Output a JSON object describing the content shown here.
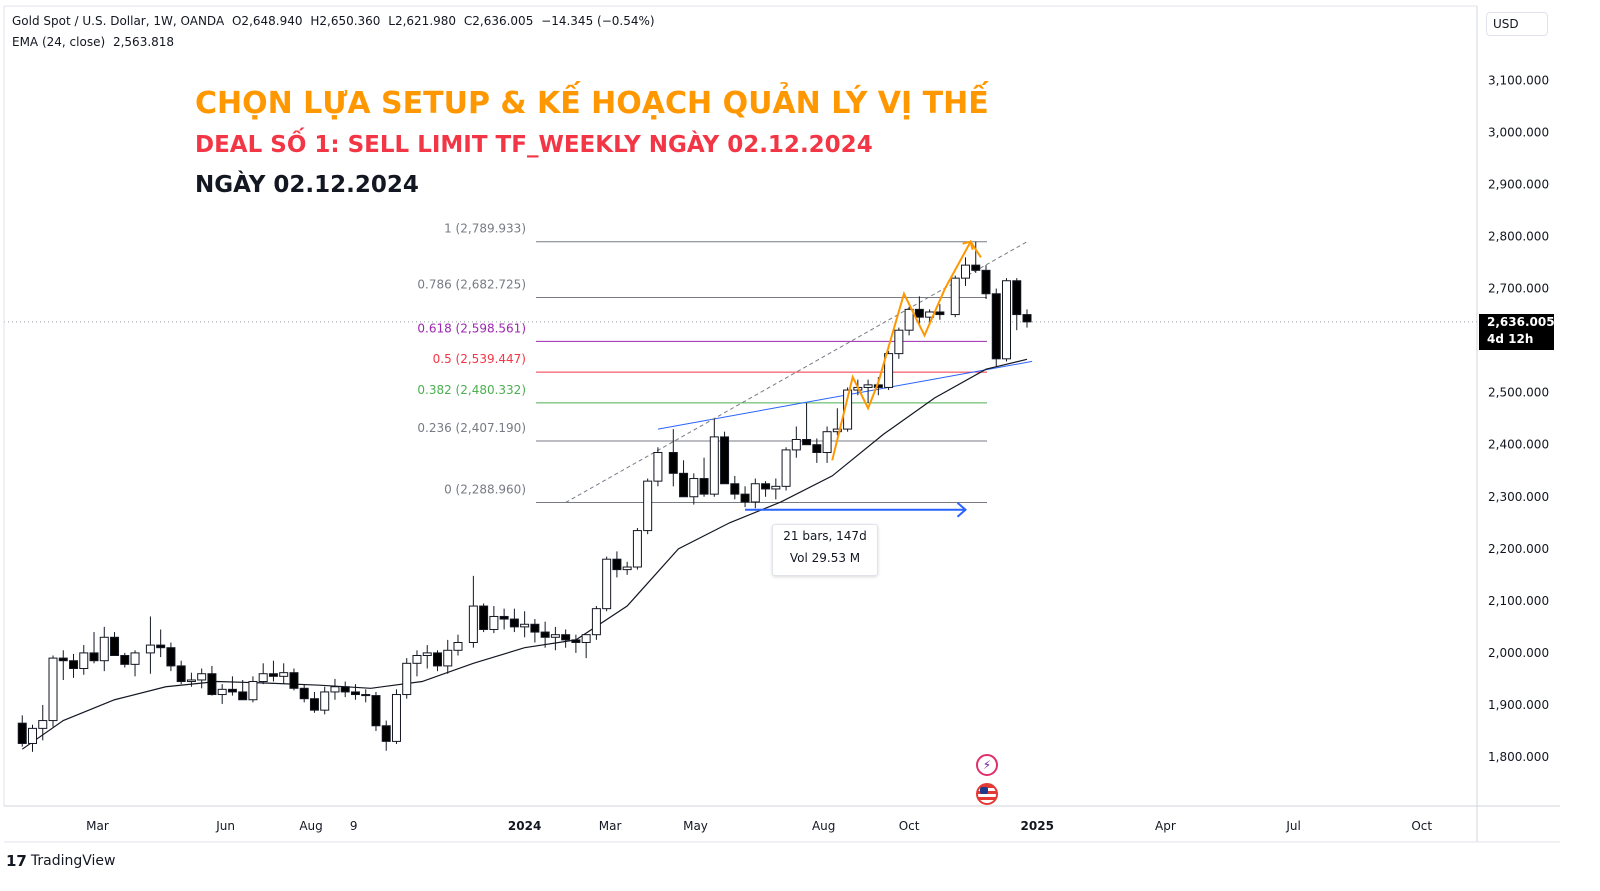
{
  "legend": {
    "symbol": "Gold Spot / U.S. Dollar, 1W, OANDA",
    "open": "O2,648.940",
    "high": "H2,650.360",
    "low": "L2,621.980",
    "close": "C2,636.005",
    "change": "−14.345 (−0.54%)",
    "ema_label": "EMA (24, close)",
    "ema_value": "2,563.818"
  },
  "titles": {
    "main": "CHỌN LỰA SETUP & KẾ HOẠCH QUẢN LÝ VỊ THẾ",
    "sub": "DEAL SỐ 1: SELL LIMIT TF_WEEKLY NGÀY 02.12.2024",
    "date": "NGÀY 02.12.2024"
  },
  "currency": "USD",
  "brand": "TradingView",
  "price_tag": {
    "price": "2,636.005",
    "countdown": "4d 12h"
  },
  "range_info": {
    "bars": "21 bars, 147d",
    "vol": "Vol 29.53 M"
  },
  "colors": {
    "title_main": "#ff9800",
    "title_sub": "#f23645",
    "ema_line": "#131722",
    "trend_line": "#2962ff",
    "zigzag": "#ff9800",
    "fib_0618": "#9c27b0",
    "fib_05": "#f23645",
    "fib_0382": "#4caf50",
    "fib_other": "#787b86",
    "range_arrow": "#2962ff"
  },
  "icons": [
    "lightning-icon",
    "us-flag-icon"
  ],
  "chart_data": {
    "type": "candlestick",
    "timeframe": "1W",
    "y_axis": {
      "ticks": [
        1800,
        1900,
        2000,
        2100,
        2200,
        2300,
        2400,
        2500,
        2600,
        2700,
        2800,
        2900,
        3000,
        3100
      ],
      "tick_labels": [
        "1,800.000",
        "1,900.000",
        "2,000.000",
        "2,100.000",
        "2,200.000",
        "2,300.000",
        "2,400.000",
        "2,500.000",
        "2,600.000",
        "2,700.000",
        "2,800.000",
        "2,900.000",
        "3,000.000",
        "3,100.000"
      ]
    },
    "x_axis": {
      "labels": [
        "Mar",
        "Jun",
        "Aug",
        "9",
        "2024",
        "Mar",
        "May",
        "Aug",
        "Oct",
        "2025",
        "Apr",
        "Jul",
        "Oct"
      ],
      "label_dates": [
        "2023-03-01",
        "2023-06-01",
        "2023-08-01",
        "2023-09-01",
        "2024-01-01",
        "2024-03-01",
        "2024-05-01",
        "2024-08-01",
        "2024-10-01",
        "2025-01-01",
        "2025-04-01",
        "2025-07-01",
        "2025-10-01"
      ]
    },
    "fib_retracement": [
      {
        "level": "1",
        "price": 2789.933,
        "label": "1 (2,789.933)"
      },
      {
        "level": "0.786",
        "price": 2682.725,
        "label": "0.786 (2,682.725)"
      },
      {
        "level": "0.618",
        "price": 2598.561,
        "label": "0.618 (2,598.561)"
      },
      {
        "level": "0.5",
        "price": 2539.447,
        "label": "0.5 (2,539.447)"
      },
      {
        "level": "0.382",
        "price": 2480.332,
        "label": "0.382 (2,480.332)"
      },
      {
        "level": "0.236",
        "price": 2407.19,
        "label": "0.236 (2,407.190)"
      },
      {
        "level": "0",
        "price": 2288.96,
        "label": "0 (2,288.960)"
      }
    ],
    "candles": [
      [
        2023.02,
        1865,
        1880,
        1820,
        1826
      ],
      [
        2023.04,
        1826,
        1862,
        1810,
        1855
      ],
      [
        2023.06,
        1855,
        1900,
        1832,
        1870
      ],
      [
        2023.08,
        1870,
        1995,
        1858,
        1990
      ],
      [
        2023.1,
        1990,
        2005,
        1948,
        1985
      ],
      [
        2023.12,
        1985,
        1998,
        1952,
        1970
      ],
      [
        2023.14,
        1970,
        2015,
        1958,
        2000
      ],
      [
        2023.16,
        2000,
        2040,
        1980,
        1985
      ],
      [
        2023.18,
        1985,
        2050,
        1965,
        2030
      ],
      [
        2023.2,
        2030,
        2040,
        1995,
        1995
      ],
      [
        2023.22,
        1995,
        2000,
        1972,
        1978
      ],
      [
        2023.24,
        1978,
        2005,
        1955,
        2000
      ],
      [
        2023.27,
        2000,
        2070,
        1960,
        2015
      ],
      [
        2023.29,
        2015,
        2045,
        1992,
        2010
      ],
      [
        2023.31,
        2010,
        2020,
        1965,
        1975
      ],
      [
        2023.33,
        1975,
        1985,
        1940,
        1945
      ],
      [
        2023.35,
        1945,
        1962,
        1935,
        1948
      ],
      [
        2023.37,
        1948,
        1970,
        1932,
        1960
      ],
      [
        2023.39,
        1960,
        1975,
        1918,
        1920
      ],
      [
        2023.41,
        1920,
        1940,
        1902,
        1930
      ],
      [
        2023.43,
        1930,
        1955,
        1918,
        1925
      ],
      [
        2023.45,
        1925,
        1948,
        1910,
        1910
      ],
      [
        2023.47,
        1910,
        1955,
        1905,
        1945
      ],
      [
        2023.49,
        1945,
        1980,
        1940,
        1960
      ],
      [
        2023.51,
        1960,
        1985,
        1945,
        1955
      ],
      [
        2023.53,
        1955,
        1980,
        1940,
        1962
      ],
      [
        2023.55,
        1962,
        1970,
        1928,
        1932
      ],
      [
        2023.57,
        1932,
        1940,
        1905,
        1912
      ],
      [
        2023.59,
        1912,
        1925,
        1885,
        1890
      ],
      [
        2023.61,
        1890,
        1935,
        1882,
        1925
      ],
      [
        2023.63,
        1925,
        1950,
        1910,
        1935
      ],
      [
        2023.65,
        1935,
        1945,
        1915,
        1925
      ],
      [
        2023.67,
        1925,
        1940,
        1910,
        1920
      ],
      [
        2023.69,
        1920,
        1930,
        1905,
        1918
      ],
      [
        2023.71,
        1918,
        1925,
        1850,
        1860
      ],
      [
        2023.73,
        1860,
        1870,
        1812,
        1830
      ],
      [
        2023.75,
        1830,
        1930,
        1825,
        1920
      ],
      [
        2023.77,
        1920,
        1990,
        1912,
        1980
      ],
      [
        2023.79,
        1980,
        2005,
        1955,
        1995
      ],
      [
        2023.81,
        1995,
        2015,
        1970,
        2000
      ],
      [
        2023.83,
        2000,
        2005,
        1965,
        1975
      ],
      [
        2023.85,
        1975,
        2025,
        1960,
        2005
      ],
      [
        2023.87,
        2005,
        2035,
        1995,
        2020
      ],
      [
        2023.9,
        2020,
        2148,
        2010,
        2090
      ],
      [
        2023.92,
        2090,
        2095,
        2040,
        2045
      ],
      [
        2023.94,
        2045,
        2090,
        2038,
        2070
      ],
      [
        2023.96,
        2070,
        2085,
        2045,
        2065
      ],
      [
        2023.98,
        2065,
        2085,
        2040,
        2050
      ],
      [
        2024.0,
        2050,
        2080,
        2030,
        2055
      ],
      [
        2024.02,
        2055,
        2065,
        2020,
        2040
      ],
      [
        2024.04,
        2040,
        2060,
        2010,
        2030
      ],
      [
        2024.06,
        2030,
        2050,
        2005,
        2035
      ],
      [
        2024.08,
        2035,
        2045,
        2010,
        2025
      ],
      [
        2024.1,
        2025,
        2035,
        2000,
        2020
      ],
      [
        2024.12,
        2020,
        2035,
        1990,
        2035
      ],
      [
        2024.14,
        2035,
        2090,
        2025,
        2085
      ],
      [
        2024.16,
        2085,
        2185,
        2080,
        2180
      ],
      [
        2024.18,
        2180,
        2195,
        2145,
        2160
      ],
      [
        2024.2,
        2160,
        2175,
        2150,
        2165
      ],
      [
        2024.22,
        2165,
        2240,
        2160,
        2235
      ],
      [
        2024.24,
        2235,
        2335,
        2228,
        2330
      ],
      [
        2024.26,
        2330,
        2395,
        2320,
        2385
      ],
      [
        2024.29,
        2385,
        2430,
        2320,
        2345
      ],
      [
        2024.31,
        2345,
        2370,
        2300,
        2300
      ],
      [
        2024.33,
        2300,
        2345,
        2285,
        2335
      ],
      [
        2024.35,
        2335,
        2375,
        2300,
        2305
      ],
      [
        2024.37,
        2305,
        2450,
        2300,
        2415
      ],
      [
        2024.39,
        2415,
        2425,
        2325,
        2325
      ],
      [
        2024.41,
        2325,
        2340,
        2295,
        2305
      ],
      [
        2024.43,
        2305,
        2320,
        2280,
        2290
      ],
      [
        2024.45,
        2290,
        2335,
        2278,
        2325
      ],
      [
        2024.47,
        2325,
        2330,
        2300,
        2315
      ],
      [
        2024.49,
        2315,
        2335,
        2295,
        2320
      ],
      [
        2024.51,
        2320,
        2395,
        2312,
        2390
      ],
      [
        2024.53,
        2390,
        2435,
        2375,
        2410
      ],
      [
        2024.55,
        2410,
        2480,
        2400,
        2400
      ],
      [
        2024.57,
        2400,
        2412,
        2365,
        2385
      ],
      [
        2024.59,
        2385,
        2435,
        2365,
        2425
      ],
      [
        2024.61,
        2425,
        2470,
        2418,
        2430
      ],
      [
        2024.63,
        2430,
        2510,
        2425,
        2505
      ],
      [
        2024.65,
        2505,
        2525,
        2495,
        2510
      ],
      [
        2024.67,
        2510,
        2525,
        2480,
        2515
      ],
      [
        2024.69,
        2515,
        2530,
        2495,
        2510
      ],
      [
        2024.71,
        2510,
        2580,
        2505,
        2575
      ],
      [
        2024.73,
        2575,
        2625,
        2565,
        2620
      ],
      [
        2024.75,
        2620,
        2665,
        2610,
        2660
      ],
      [
        2024.77,
        2660,
        2685,
        2630,
        2645
      ],
      [
        2024.79,
        2645,
        2660,
        2630,
        2655
      ],
      [
        2024.81,
        2655,
        2670,
        2640,
        2650
      ],
      [
        2024.84,
        2650,
        2725,
        2645,
        2720
      ],
      [
        2024.86,
        2720,
        2760,
        2705,
        2745
      ],
      [
        2024.88,
        2745,
        2790,
        2730,
        2735
      ],
      [
        2024.9,
        2735,
        2745,
        2680,
        2690
      ],
      [
        2024.92,
        2690,
        2700,
        2550,
        2565
      ],
      [
        2024.94,
        2565,
        2720,
        2560,
        2715
      ],
      [
        2024.96,
        2715,
        2720,
        2620,
        2650
      ],
      [
        2024.98,
        2650,
        2660,
        2625,
        2636
      ]
    ],
    "ema": {
      "name": "EMA (24, close)",
      "x": [
        2023.02,
        2023.1,
        2023.2,
        2023.3,
        2023.4,
        2023.5,
        2023.6,
        2023.7,
        2023.8,
        2023.9,
        2024.0,
        2024.1,
        2024.2,
        2024.3,
        2024.4,
        2024.5,
        2024.6,
        2024.7,
        2024.8,
        2024.9,
        2024.98
      ],
      "y": [
        1815,
        1870,
        1910,
        1935,
        1945,
        1942,
        1938,
        1932,
        1945,
        1980,
        2010,
        2025,
        2090,
        2200,
        2250,
        2290,
        2340,
        2420,
        2490,
        2545,
        2564
      ]
    },
    "zigzag_pattern": {
      "x": [
        2024.6,
        2024.64,
        2024.67,
        2024.69,
        2024.74,
        2024.78,
        2024.82,
        2024.87,
        2024.89
      ],
      "y": [
        2370,
        2530,
        2470,
        2520,
        2690,
        2610,
        2700,
        2790,
        2760
      ]
    },
    "trend_lines": [
      {
        "style": "solid",
        "color": "trend_line",
        "x": [
          2024.26,
          2024.99
        ],
        "y": [
          2430,
          2560
        ]
      },
      {
        "style": "dashed",
        "color": "fib_other",
        "x": [
          2024.08,
          2024.98
        ],
        "y": [
          2288.96,
          2789.933
        ]
      }
    ],
    "range_measure": {
      "x_start": 2024.43,
      "x_end": 2024.86,
      "price": 2275
    },
    "last_price": 2636.005
  }
}
